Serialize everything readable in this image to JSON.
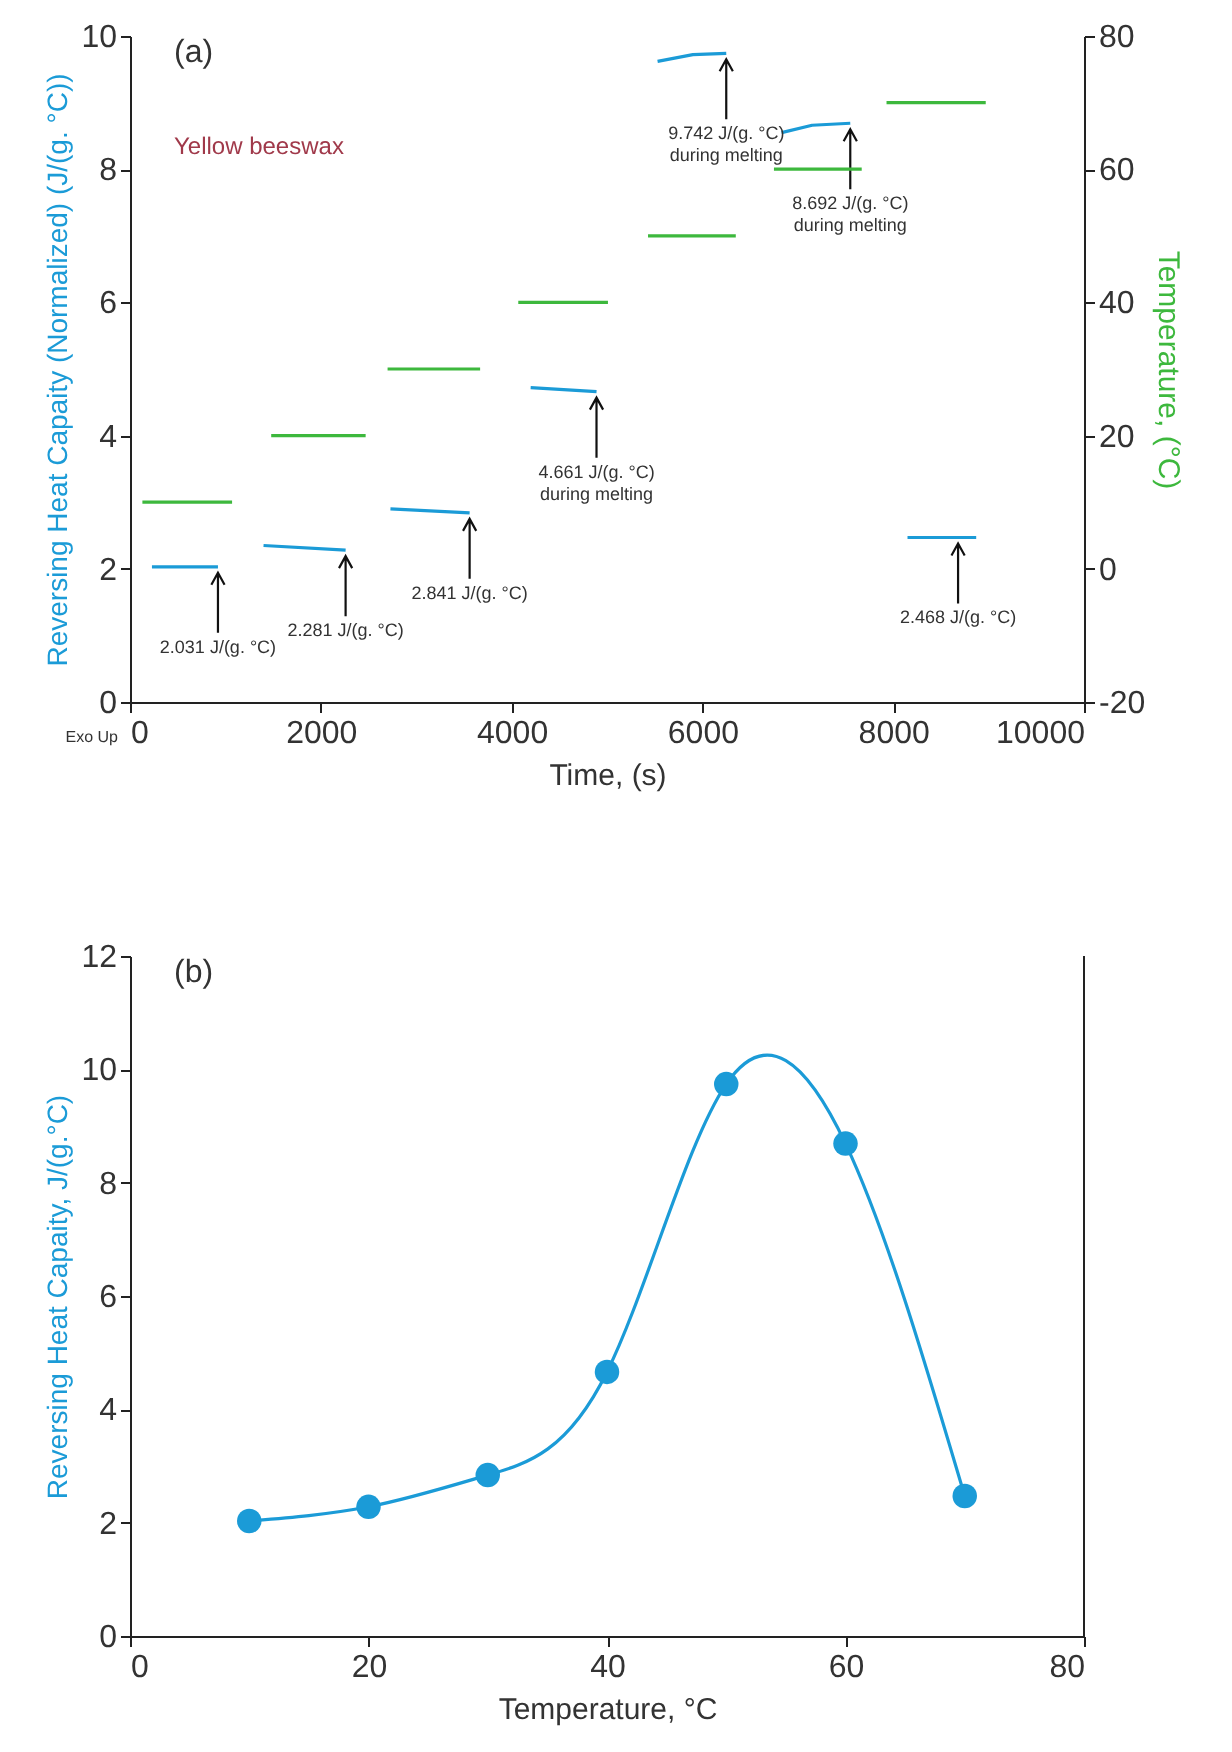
{
  "chart_data": [
    {
      "type": "line",
      "title": "(a)",
      "subtitle": "Yellow beeswax",
      "xlabel": "Time, (s)",
      "ylabel": "Reversing Heat Capaity (Normalized) (J/(g. °C))",
      "y2label": "Temperature, (°C)",
      "xlim": [
        0,
        10000
      ],
      "xticks": [
        0,
        2000,
        4000,
        6000,
        8000,
        10000
      ],
      "ylim": [
        0,
        10
      ],
      "yticks": [
        0,
        2,
        4,
        6,
        8,
        10
      ],
      "y2lim": [
        -20,
        80
      ],
      "y2ticks": [
        -20,
        0,
        20,
        40,
        60,
        80
      ],
      "grid": false,
      "marker": "none",
      "line_style": "solid",
      "series": [
        {
          "color": "#1b9bd7",
          "x": [
            230,
            922,
            1100,
            1400,
            2260,
            2500,
            2730,
            3560,
            3900,
            4200,
            4890,
            5200,
            5530,
            5900,
            6250,
            6500,
            6830,
            7150,
            7550,
            7800,
            8150,
            8870
          ],
          "values": [
            2.03,
            2.03,
            null,
            2.35,
            2.28,
            null,
            2.9,
            2.84,
            null,
            4.72,
            4.66,
            null,
            9.62,
            9.72,
            9.74,
            null,
            8.55,
            8.66,
            8.69,
            null,
            2.47,
            2.47
          ]
        },
        {
          "color": "#3db83d",
          "axis": "y2",
          "x": [
            130,
            1070,
            1300,
            1480,
            2470,
            2600,
            2700,
            3670,
            3900,
            4070,
            5010,
            5200,
            5430,
            6350,
            6500,
            6750,
            7670,
            7800,
            7930,
            8970
          ],
          "values": [
            10,
            10,
            null,
            20,
            20,
            null,
            30,
            30,
            null,
            40,
            40,
            null,
            50,
            50,
            null,
            60,
            60,
            null,
            70,
            70
          ]
        }
      ],
      "annotations": [
        {
          "text": "2.031 J/(g. °C)",
          "x": 922,
          "y": 2.03
        },
        {
          "text": "2.281 J/(g. °C)",
          "x": 2260,
          "y": 2.28
        },
        {
          "text": "2.841 J/(g. °C)",
          "x": 3560,
          "y": 2.84
        },
        {
          "text": "4.661 J/(g. °C)\nduring melting",
          "x": 4890,
          "y": 4.66
        },
        {
          "text": "9.742 J/(g. °C)\nduring melting",
          "x": 6250,
          "y": 9.74
        },
        {
          "text": "8.692 J/(g. °C)\nduring melting",
          "x": 7550,
          "y": 8.69
        },
        {
          "text": "2.468 J/(g. °C)",
          "x": 8680,
          "y": 2.47
        },
        "Exo Up"
      ]
    },
    {
      "type": "line",
      "title": "(b)",
      "xlabel": "Temperature, °C",
      "ylabel": "Reversing Heat Capaity, J/(g.°C)",
      "xlim": [
        0,
        80
      ],
      "xticks": [
        0,
        20,
        40,
        60,
        80
      ],
      "ylim": [
        0,
        12
      ],
      "yticks": [
        0,
        2,
        4,
        6,
        8,
        10,
        12
      ],
      "grid": false,
      "marker": "circle",
      "line_style": "solid",
      "x": [
        10,
        20,
        30,
        40,
        50,
        60,
        70
      ],
      "series": [
        {
          "color": "#1b9bd7",
          "values": [
            2.03,
            2.28,
            2.84,
            4.66,
            9.74,
            8.69,
            2.47
          ]
        }
      ]
    }
  ]
}
